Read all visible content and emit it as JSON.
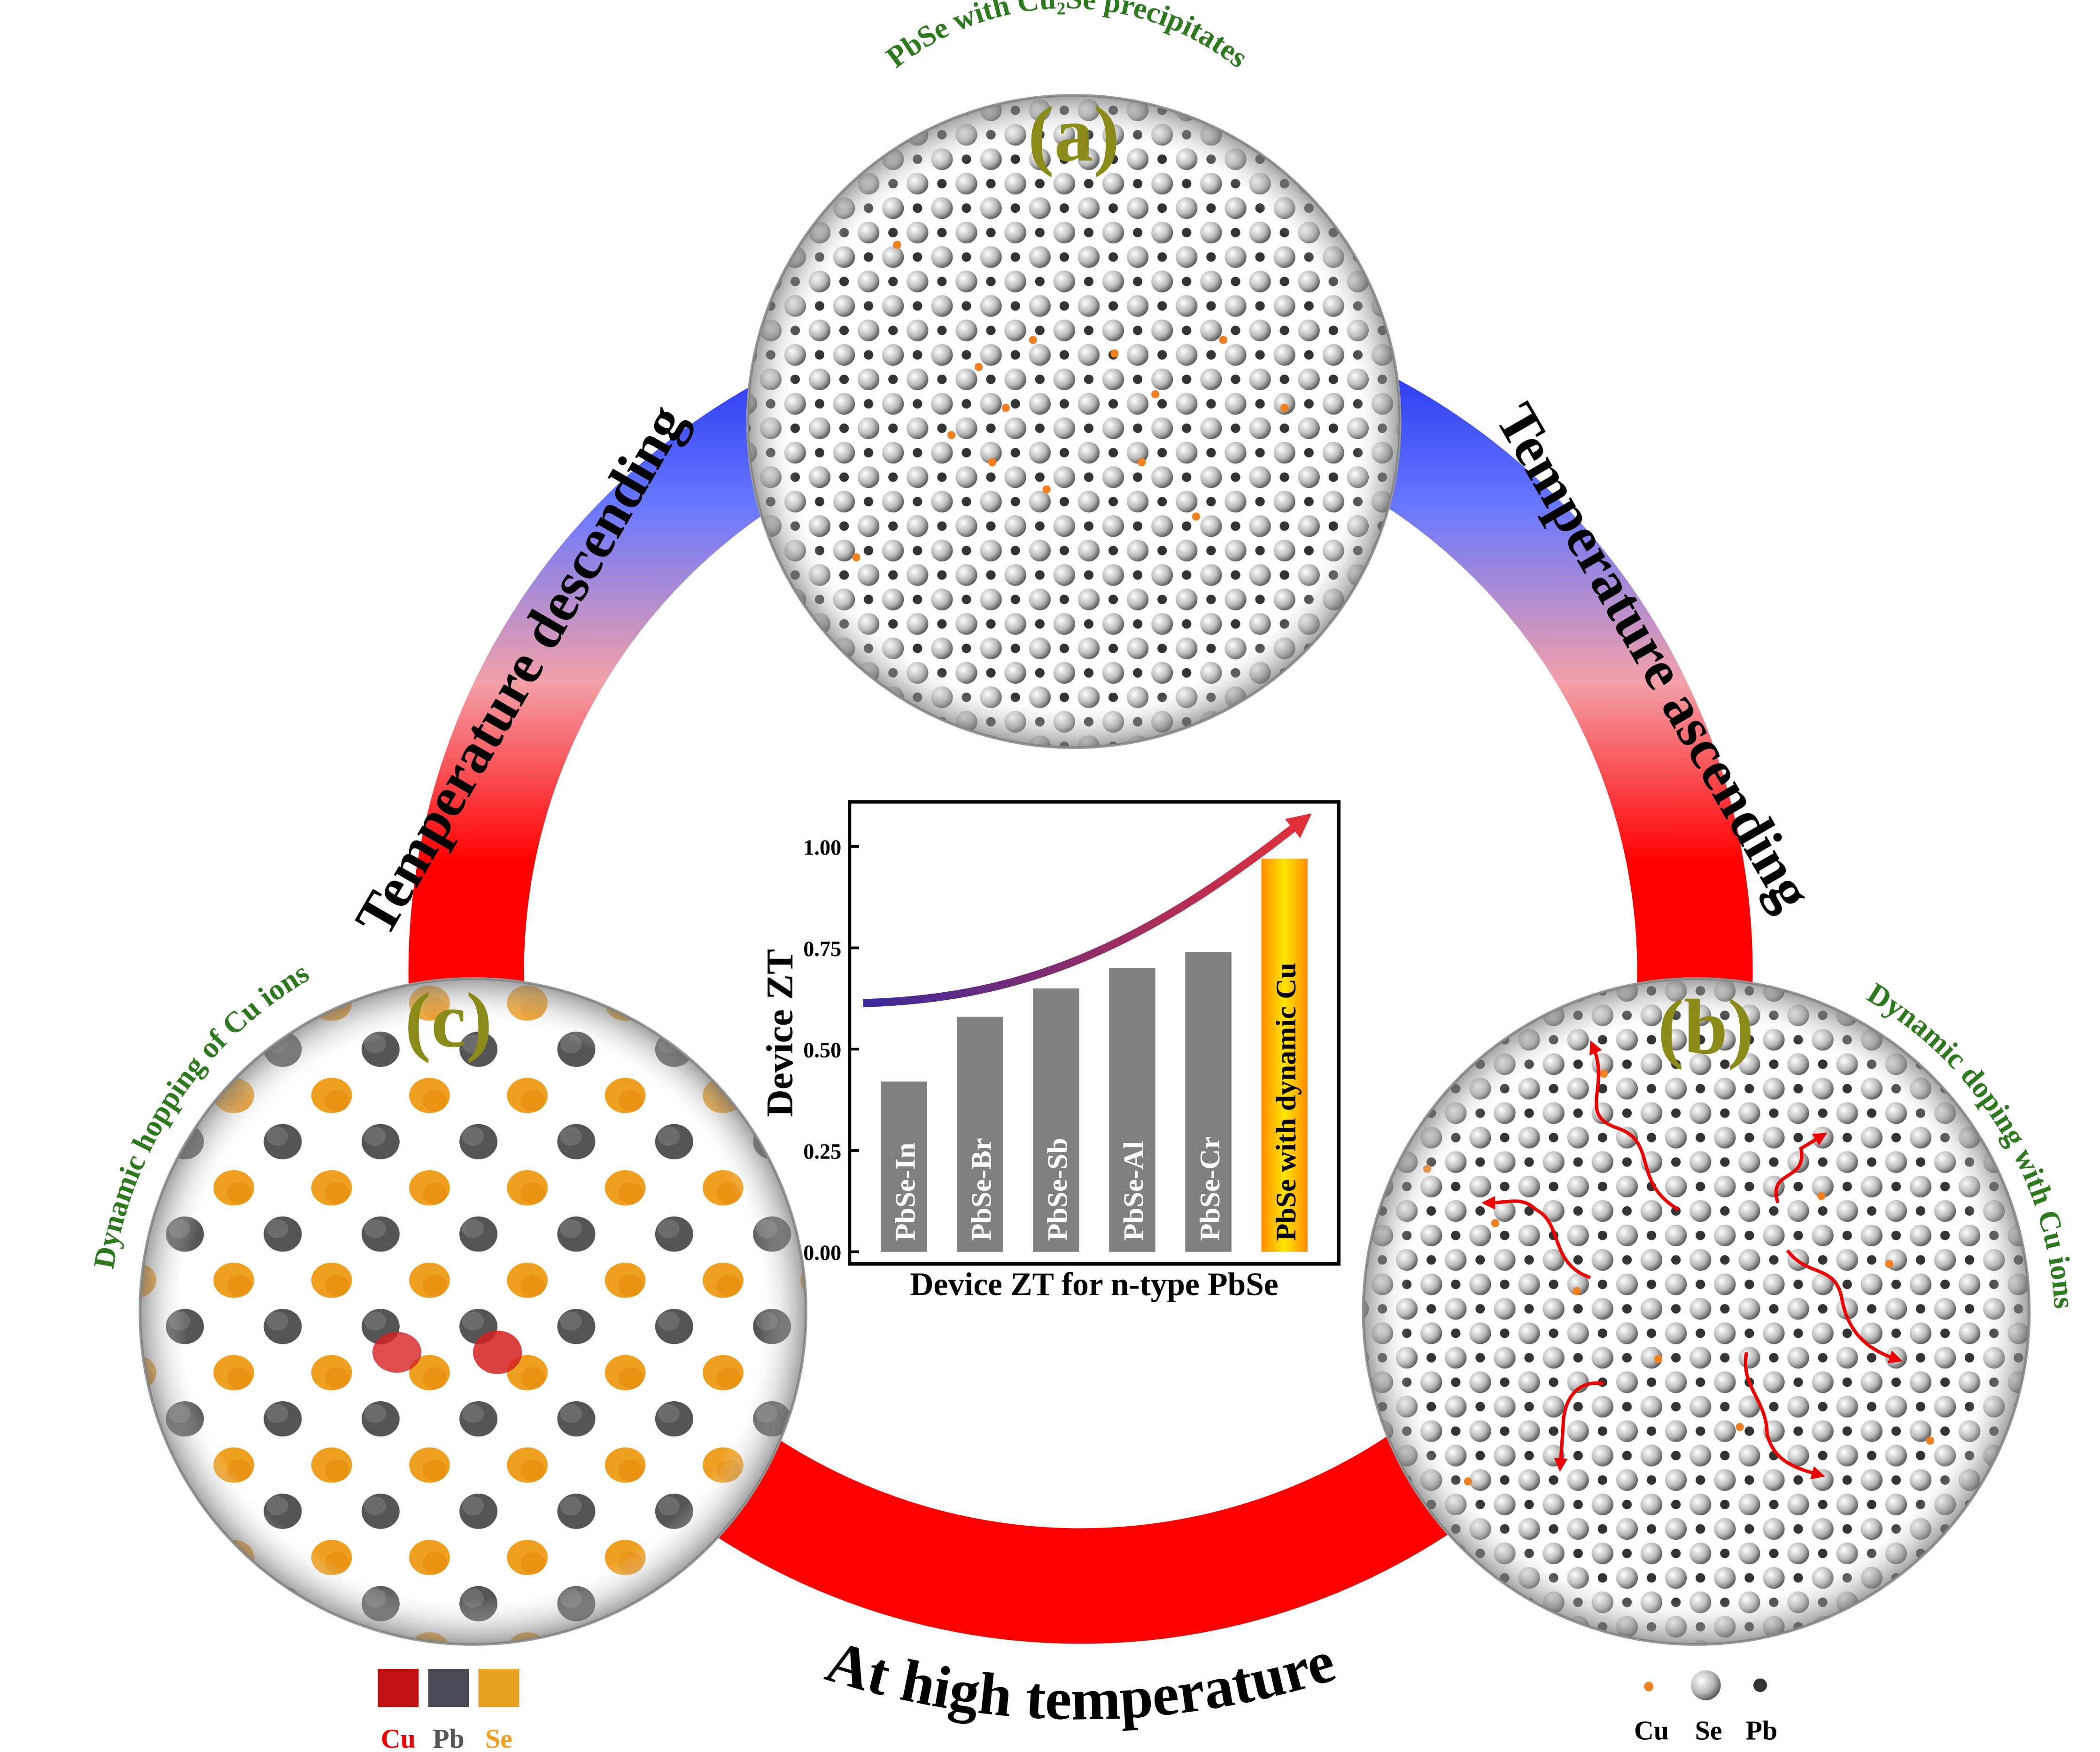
{
  "panels": {
    "a": {
      "label": "(a)",
      "caption": "PbSe with Cu₂Se precipitates"
    },
    "b": {
      "label": "(b)",
      "caption": "Dynamic doping with Cu ions"
    },
    "c": {
      "label": "(c)",
      "caption": "Dynamic hopping of Cu ions"
    }
  },
  "arcs": {
    "left": "Temperature descending",
    "right": "Temperature ascending",
    "bottom": "At high temperature"
  },
  "legend_c": [
    "Cu",
    "Pb",
    "Se"
  ],
  "legend_b": [
    "Cu",
    "Se",
    "Pb"
  ],
  "chart_data": {
    "type": "bar",
    "ylabel": "Device ZT",
    "xlabel": "Device ZT for n-type PbSe",
    "categories": [
      "PbSe-In",
      "PbSe-Br",
      "PbSe-Sb",
      "PbSe-Al",
      "PbSe-Cr",
      "PbSe with dynamic Cu"
    ],
    "values": [
      0.42,
      0.58,
      0.65,
      0.7,
      0.74,
      0.97
    ],
    "color": "#808080",
    "ylim": [
      -0.03,
      1.11
    ],
    "yticks": [
      {
        "value": 0,
        "label": "0.00"
      },
      {
        "value": 0.25,
        "label": "0.25"
      },
      {
        "value": 0.5,
        "label": "0.50"
      },
      {
        "value": 0.75,
        "label": "0.75"
      },
      {
        "value": 1,
        "label": "1.00"
      }
    ]
  }
}
